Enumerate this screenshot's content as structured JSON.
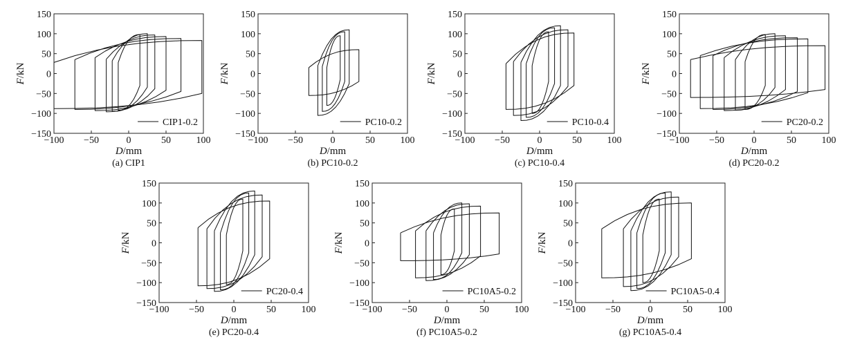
{
  "chart_data": [
    {
      "type": "line",
      "caption": "(a) CIP1",
      "legend": "CIP1-0.2",
      "xlabel_var": "D",
      "xlabel_unit": "/mm",
      "ylabel_var": "F",
      "ylabel_unit": "/kN",
      "xlim": [
        -100,
        100
      ],
      "ylim": [
        -150,
        150
      ],
      "xticks": [
        -100,
        -50,
        0,
        50,
        100
      ],
      "yticks": [
        -150,
        -100,
        -50,
        0,
        50,
        100,
        150
      ],
      "legend_position": "bottom-right",
      "loops": [
        {
          "dmax": 15,
          "dmin": -14,
          "fp": 98,
          "fn": -92,
          "cp": 28,
          "cn": -30
        },
        {
          "dmax": 25,
          "dmin": -22,
          "fp": 100,
          "fn": -95,
          "cp": 32,
          "cn": -34
        },
        {
          "dmax": 35,
          "dmin": -30,
          "fp": 97,
          "fn": -96,
          "cp": 36,
          "cn": -38
        },
        {
          "dmax": 50,
          "dmin": -45,
          "fp": 93,
          "fn": -93,
          "cp": 40,
          "cn": -42
        },
        {
          "dmax": 70,
          "dmin": -72,
          "fp": 88,
          "fn": -90,
          "cp": 35,
          "cn": -45
        },
        {
          "dmax": 98,
          "dmin": -100,
          "fp": 83,
          "fn": -88,
          "cp": 28,
          "cn": -50
        }
      ]
    },
    {
      "type": "line",
      "caption": "(b) PC10-0.2",
      "legend": "PC10-0.2",
      "xlabel_var": "D",
      "xlabel_unit": "/mm",
      "ylabel_var": "F",
      "ylabel_unit": "/kN",
      "xlim": [
        -100,
        100
      ],
      "ylim": [
        -150,
        150
      ],
      "xticks": [
        -100,
        -50,
        0,
        50,
        100
      ],
      "yticks": [
        -150,
        -100,
        -50,
        0,
        50,
        100,
        150
      ],
      "legend_position": "bottom-right",
      "loops": [
        {
          "dmax": 10,
          "dmin": -8,
          "fp": 95,
          "fn": -80,
          "cp": 15,
          "cn": -15
        },
        {
          "dmax": 16,
          "dmin": -14,
          "fp": 105,
          "fn": -95,
          "cp": 18,
          "cn": -20
        },
        {
          "dmax": 22,
          "dmin": -20,
          "fp": 110,
          "fn": -105,
          "cp": 20,
          "cn": -25
        },
        {
          "dmax": 35,
          "dmin": -32,
          "fp": 60,
          "fn": -55,
          "cp": 15,
          "cn": -20
        }
      ]
    },
    {
      "type": "line",
      "caption": "(c) PC10-0.4",
      "legend": "PC10-0.4",
      "xlabel_var": "D",
      "xlabel_unit": "/mm",
      "ylabel_var": "F",
      "ylabel_unit": "/kN",
      "xlim": [
        -100,
        100
      ],
      "ylim": [
        -150,
        150
      ],
      "xticks": [
        -100,
        -50,
        0,
        50,
        100
      ],
      "yticks": [
        -150,
        -100,
        -50,
        0,
        50,
        100,
        150
      ],
      "legend_position": "bottom-right",
      "loops": [
        {
          "dmax": 12,
          "dmin": -10,
          "fp": 105,
          "fn": -100,
          "cp": 20,
          "cn": -20
        },
        {
          "dmax": 20,
          "dmin": -18,
          "fp": 115,
          "fn": -110,
          "cp": 25,
          "cn": -25
        },
        {
          "dmax": 28,
          "dmin": -25,
          "fp": 120,
          "fn": -118,
          "cp": 28,
          "cn": -30
        },
        {
          "dmax": 38,
          "dmin": -35,
          "fp": 110,
          "fn": -105,
          "cp": 30,
          "cn": -32
        },
        {
          "dmax": 46,
          "dmin": -45,
          "fp": 102,
          "fn": -90,
          "cp": 25,
          "cn": -30
        }
      ]
    },
    {
      "type": "line",
      "caption": "(d) PC20-0.2",
      "legend": "PC20-0.2",
      "xlabel_var": "D",
      "xlabel_unit": "/mm",
      "ylabel_var": "F",
      "ylabel_unit": "/kN",
      "xlim": [
        -100,
        100
      ],
      "ylim": [
        -150,
        150
      ],
      "xticks": [
        -100,
        -50,
        0,
        50,
        100
      ],
      "yticks": [
        -150,
        -100,
        -50,
        0,
        50,
        100,
        150
      ],
      "legend_position": "bottom-right",
      "loops": [
        {
          "dmax": 15,
          "dmin": -12,
          "fp": 98,
          "fn": -90,
          "cp": 30,
          "cn": -30
        },
        {
          "dmax": 28,
          "dmin": -25,
          "fp": 100,
          "fn": -92,
          "cp": 35,
          "cn": -35
        },
        {
          "dmax": 42,
          "dmin": -40,
          "fp": 95,
          "fn": -93,
          "cp": 40,
          "cn": -40
        },
        {
          "dmax": 58,
          "dmin": -55,
          "fp": 90,
          "fn": -90,
          "cp": 45,
          "cn": -45
        },
        {
          "dmax": 72,
          "dmin": -72,
          "fp": 87,
          "fn": -88,
          "cp": 45,
          "cn": -48
        },
        {
          "dmax": 95,
          "dmin": -85,
          "fp": 70,
          "fn": -60,
          "cp": 35,
          "cn": -40
        }
      ]
    },
    {
      "type": "line",
      "caption": "(e) PC20-0.4",
      "legend": "PC20-0.4",
      "xlabel_var": "D",
      "xlabel_unit": "/mm",
      "ylabel_var": "F",
      "ylabel_unit": "/kN",
      "xlim": [
        -100,
        100
      ],
      "ylim": [
        -150,
        150
      ],
      "xticks": [
        -100,
        -50,
        0,
        50,
        100
      ],
      "yticks": [
        -150,
        -100,
        -50,
        0,
        50,
        100,
        150
      ],
      "legend_position": "bottom-right",
      "loops": [
        {
          "dmax": 12,
          "dmin": -10,
          "fp": 110,
          "fn": -105,
          "cp": 20,
          "cn": -20
        },
        {
          "dmax": 20,
          "dmin": -18,
          "fp": 125,
          "fn": -118,
          "cp": 25,
          "cn": -25
        },
        {
          "dmax": 28,
          "dmin": -26,
          "fp": 130,
          "fn": -122,
          "cp": 30,
          "cn": -30
        },
        {
          "dmax": 38,
          "dmin": -36,
          "fp": 120,
          "fn": -115,
          "cp": 35,
          "cn": -35
        },
        {
          "dmax": 48,
          "dmin": -48,
          "fp": 105,
          "fn": -108,
          "cp": 38,
          "cn": -40
        }
      ]
    },
    {
      "type": "line",
      "caption": "(f) PC10A5-0.2",
      "legend": "PC10A5-0.2",
      "xlabel_var": "D",
      "xlabel_unit": "/mm",
      "ylabel_var": "F",
      "ylabel_unit": "/kN",
      "xlim": [
        -100,
        100
      ],
      "ylim": [
        -150,
        150
      ],
      "xticks": [
        -100,
        -50,
        0,
        50,
        100
      ],
      "yticks": [
        -150,
        -100,
        -50,
        0,
        50,
        100,
        150
      ],
      "legend_position": "bottom-right",
      "loops": [
        {
          "dmax": 10,
          "dmin": -8,
          "fp": 85,
          "fn": -80,
          "cp": 20,
          "cn": -20
        },
        {
          "dmax": 20,
          "dmin": -18,
          "fp": 100,
          "fn": -92,
          "cp": 25,
          "cn": -25
        },
        {
          "dmax": 30,
          "dmin": -28,
          "fp": 98,
          "fn": -95,
          "cp": 30,
          "cn": -30
        },
        {
          "dmax": 45,
          "dmin": -42,
          "fp": 92,
          "fn": -88,
          "cp": 30,
          "cn": -33
        },
        {
          "dmax": 70,
          "dmin": -62,
          "fp": 75,
          "fn": -45,
          "cp": 25,
          "cn": -28
        }
      ]
    },
    {
      "type": "line",
      "caption": "(g) PC10A5-0.4",
      "legend": "PC10A5-0.4",
      "xlabel_var": "D",
      "xlabel_unit": "/mm",
      "ylabel_var": "F",
      "ylabel_unit": "/kN",
      "xlim": [
        -100,
        100
      ],
      "ylim": [
        -150,
        150
      ],
      "xticks": [
        -100,
        -50,
        0,
        50,
        100
      ],
      "yticks": [
        -150,
        -100,
        -50,
        0,
        50,
        100,
        150
      ],
      "legend_position": "bottom-right",
      "loops": [
        {
          "dmax": 12,
          "dmin": -10,
          "fp": 110,
          "fn": -100,
          "cp": 20,
          "cn": -20
        },
        {
          "dmax": 20,
          "dmin": -18,
          "fp": 125,
          "fn": -115,
          "cp": 25,
          "cn": -25
        },
        {
          "dmax": 28,
          "dmin": -26,
          "fp": 128,
          "fn": -120,
          "cp": 30,
          "cn": -30
        },
        {
          "dmax": 38,
          "dmin": -36,
          "fp": 115,
          "fn": -110,
          "cp": 35,
          "cn": -35
        },
        {
          "dmax": 55,
          "dmin": -65,
          "fp": 100,
          "fn": -88,
          "cp": 35,
          "cn": -40
        }
      ]
    }
  ]
}
